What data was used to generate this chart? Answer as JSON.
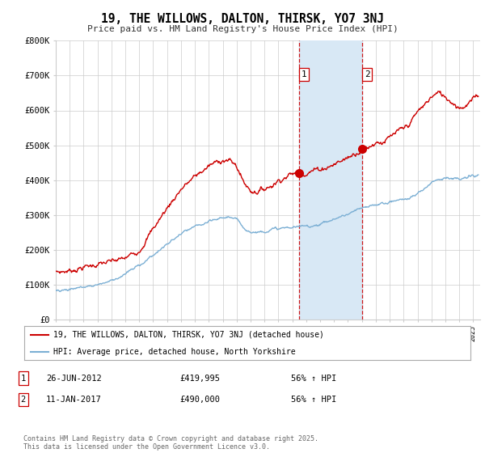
{
  "title": "19, THE WILLOWS, DALTON, THIRSK, YO7 3NJ",
  "subtitle": "Price paid vs. HM Land Registry's House Price Index (HPI)",
  "legend_line1": "19, THE WILLOWS, DALTON, THIRSK, YO7 3NJ (detached house)",
  "legend_line2": "HPI: Average price, detached house, North Yorkshire",
  "transaction1_date": "26-JUN-2012",
  "transaction1_price": "£419,995",
  "transaction1_hpi": "56% ↑ HPI",
  "transaction2_date": "11-JAN-2017",
  "transaction2_price": "£490,000",
  "transaction2_hpi": "56% ↑ HPI",
  "footer": "Contains HM Land Registry data © Crown copyright and database right 2025.\nThis data is licensed under the Open Government Licence v3.0.",
  "ylim": [
    0,
    800000
  ],
  "yticks": [
    0,
    100000,
    200000,
    300000,
    400000,
    500000,
    600000,
    700000,
    800000
  ],
  "ytick_labels": [
    "£0",
    "£100K",
    "£200K",
    "£300K",
    "£400K",
    "£500K",
    "£600K",
    "£700K",
    "£800K"
  ],
  "xlim_start": 1995.0,
  "xlim_end": 2025.5,
  "marker1_x": 2012.483,
  "marker1_y": 419995,
  "marker2_x": 2017.028,
  "marker2_y": 490000,
  "line_color_red": "#CC0000",
  "line_color_blue": "#7BAFD4",
  "shading_color": "#D8E8F5",
  "vline_color": "#CC0000",
  "background_color": "#FFFFFF",
  "grid_color": "#CCCCCC",
  "prop_keypoints_x": [
    1995.0,
    1996.0,
    1997.0,
    1998.0,
    1999.0,
    2000.0,
    2001.0,
    2002.0,
    2003.0,
    2004.0,
    2005.0,
    2006.0,
    2007.0,
    2007.5,
    2008.0,
    2008.5,
    2009.0,
    2009.5,
    2010.0,
    2010.5,
    2011.0,
    2011.5,
    2012.0,
    2012.483,
    2013.0,
    2013.5,
    2014.0,
    2014.5,
    2015.0,
    2015.5,
    2016.0,
    2016.5,
    2017.028,
    2017.5,
    2018.0,
    2018.5,
    2019.0,
    2019.5,
    2020.0,
    2020.5,
    2021.0,
    2021.5,
    2022.0,
    2022.5,
    2023.0,
    2023.5,
    2024.0,
    2024.5,
    2025.0,
    2025.3
  ],
  "prop_keypoints_y": [
    135000,
    140000,
    150000,
    158000,
    165000,
    175000,
    200000,
    260000,
    320000,
    375000,
    410000,
    440000,
    460000,
    455000,
    440000,
    395000,
    370000,
    368000,
    375000,
    385000,
    400000,
    410000,
    418000,
    419995,
    422000,
    428000,
    432000,
    438000,
    445000,
    455000,
    465000,
    478000,
    490000,
    495000,
    510000,
    510000,
    520000,
    535000,
    545000,
    565000,
    595000,
    615000,
    640000,
    650000,
    640000,
    625000,
    610000,
    615000,
    630000,
    645000
  ],
  "hpi_keypoints_x": [
    1995.0,
    1996.0,
    1997.0,
    1998.0,
    1999.0,
    2000.0,
    2001.0,
    2002.0,
    2003.0,
    2004.0,
    2005.0,
    2006.0,
    2007.0,
    2007.5,
    2008.0,
    2008.5,
    2009.0,
    2009.5,
    2010.0,
    2010.5,
    2011.0,
    2011.5,
    2012.0,
    2012.5,
    2013.0,
    2013.5,
    2014.0,
    2014.5,
    2015.0,
    2015.5,
    2016.0,
    2016.5,
    2017.0,
    2017.5,
    2018.0,
    2018.5,
    2019.0,
    2019.5,
    2020.0,
    2020.5,
    2021.0,
    2021.5,
    2022.0,
    2022.5,
    2023.0,
    2023.5,
    2024.0,
    2024.5,
    2025.0,
    2025.3
  ],
  "hpi_keypoints_y": [
    83000,
    87000,
    93000,
    100000,
    112000,
    130000,
    155000,
    185000,
    215000,
    245000,
    265000,
    278000,
    292000,
    295000,
    285000,
    265000,
    252000,
    250000,
    255000,
    258000,
    260000,
    262000,
    264000,
    265000,
    268000,
    270000,
    275000,
    280000,
    288000,
    295000,
    302000,
    310000,
    318000,
    323000,
    330000,
    333000,
    338000,
    342000,
    345000,
    350000,
    360000,
    375000,
    395000,
    405000,
    408000,
    405000,
    400000,
    405000,
    412000,
    415000
  ]
}
